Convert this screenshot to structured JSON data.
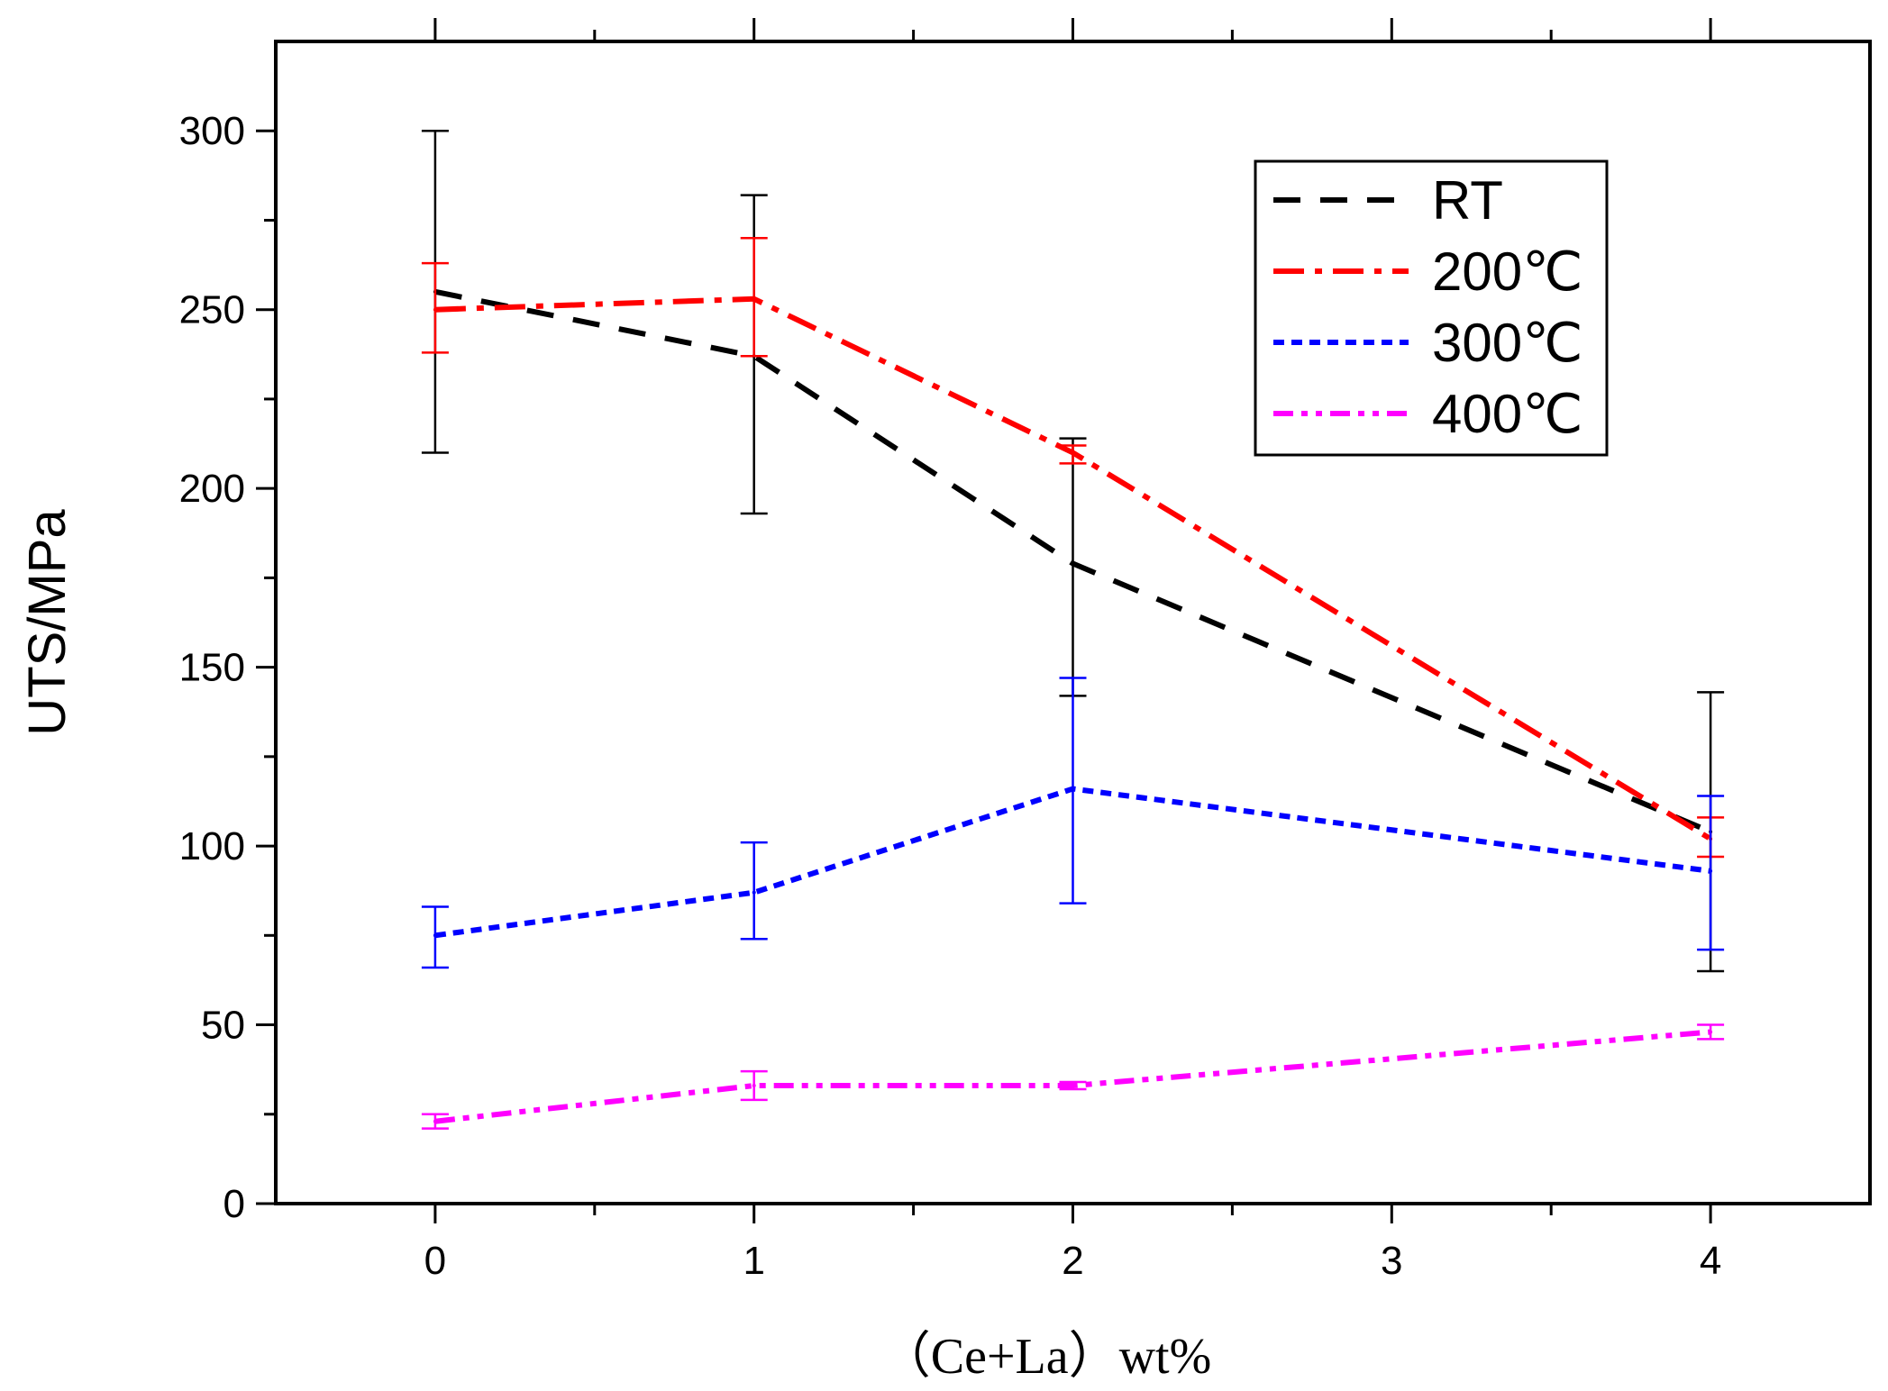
{
  "chart_data": {
    "type": "line",
    "title": "",
    "xlabel": "（Ce+La）wt%",
    "ylabel": "UTS/MPa",
    "xlim": [
      -0.5,
      4.5
    ],
    "ylim": [
      0,
      325
    ],
    "x_ticks": [
      0,
      1,
      2,
      3,
      4
    ],
    "x_tick_labels": [
      "0",
      "1",
      "2",
      "3",
      "4"
    ],
    "x_minor_ticks": [
      0.5,
      1.5,
      2.5,
      3.5
    ],
    "y_ticks": [
      0,
      50,
      100,
      150,
      200,
      250,
      300
    ],
    "y_tick_labels": [
      "0",
      "50",
      "100",
      "150",
      "200",
      "250",
      "300"
    ],
    "y_minor_ticks": [
      25,
      75,
      125,
      175,
      225,
      275
    ],
    "legend_position": "top-right",
    "series": [
      {
        "name": "RT",
        "color": "#000000",
        "style": "dash",
        "x": [
          0,
          1,
          2,
          4
        ],
        "values": [
          255,
          237,
          179,
          104
        ],
        "error_low": [
          210,
          193,
          142,
          65
        ],
        "error_high": [
          300,
          282,
          214,
          143
        ]
      },
      {
        "name": "200℃",
        "color": "#ff0000",
        "style": "dash-dot",
        "x": [
          0,
          1,
          2,
          4
        ],
        "values": [
          250,
          253,
          210,
          102
        ],
        "error_low": [
          238,
          237,
          207,
          97
        ],
        "error_high": [
          263,
          270,
          212,
          108
        ]
      },
      {
        "name": "300℃",
        "color": "#0000ff",
        "style": "short-dash",
        "x": [
          0,
          1,
          2,
          4
        ],
        "values": [
          75,
          87,
          116,
          93
        ],
        "error_low": [
          66,
          74,
          84,
          71
        ],
        "error_high": [
          83,
          101,
          147,
          114
        ]
      },
      {
        "name": "400℃",
        "color": "#ff00ff",
        "style": "dash-dot-dot",
        "x": [
          0,
          1,
          2,
          4
        ],
        "values": [
          23,
          33,
          33,
          48
        ],
        "error_low": [
          21,
          29,
          32,
          46
        ],
        "error_high": [
          25,
          37,
          34,
          50
        ]
      }
    ]
  }
}
